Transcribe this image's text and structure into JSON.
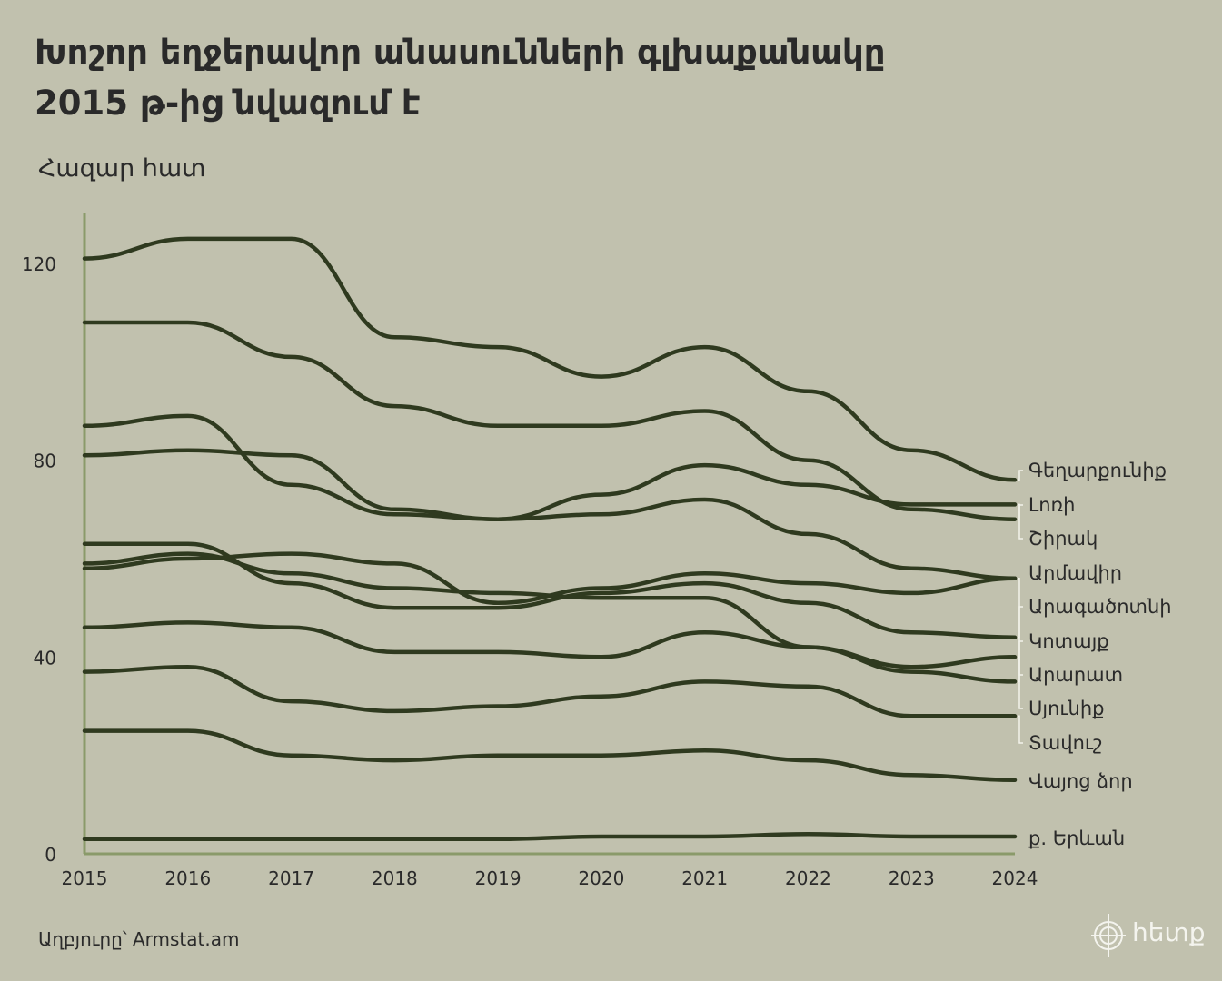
{
  "title_line1": "Խոշոր եղջերավոր անասունների գլխաքանակը",
  "title_line2": "2015 թ-ից նվազում է",
  "unit_label": "Հազար հատ",
  "source_text": "Աղբյուրը՝ Armstat.am",
  "logo_text": "հետք",
  "colors": {
    "background": "#c1c1ae",
    "line": "#2f3a1f",
    "axis": "#8a9a6a",
    "label_connector": "#f2f2ea",
    "text": "#2a2a2a"
  },
  "chart_data": {
    "type": "line",
    "title": "Խոշոր եղջերավոր անասունների գլխաքանակը 2015 թ-ից նվազում է",
    "ylabel": "Հազար հատ",
    "xlabel": "",
    "x": [
      2015,
      2016,
      2017,
      2018,
      2019,
      2020,
      2021,
      2022,
      2023,
      2024
    ],
    "x_tick_labels": [
      "2015",
      "2016",
      "2017",
      "2018",
      "2019",
      "2020",
      "2021",
      "2022",
      "2023",
      "2024"
    ],
    "ylim": [
      0,
      130
    ],
    "y_ticks": [
      0,
      40,
      80,
      120
    ],
    "grid": false,
    "legend": "direct labels at right end",
    "series": [
      {
        "name": "Գեղարքունիք",
        "values": [
          121,
          125,
          125,
          105,
          103,
          97,
          103,
          94,
          82,
          76
        ]
      },
      {
        "name": "Լոռի",
        "values": [
          108,
          108,
          101,
          91,
          87,
          87,
          90,
          80,
          70,
          68
        ]
      },
      {
        "name": "Շիրակ",
        "values": [
          87,
          89,
          75,
          69,
          68,
          73,
          79,
          75,
          71,
          71
        ]
      },
      {
        "name": "Արմավիր",
        "values": [
          81,
          82,
          81,
          70,
          68,
          69,
          72,
          65,
          58,
          56
        ]
      },
      {
        "name": "Արագածոտնի",
        "values": [
          63,
          63,
          55,
          50,
          50,
          53,
          55,
          51,
          45,
          44
        ]
      },
      {
        "name": "Կոտայք",
        "values": [
          59,
          61,
          57,
          54,
          53,
          52,
          52,
          42,
          37,
          35
        ]
      },
      {
        "name": "Արարատ",
        "values": [
          58,
          60,
          61,
          59,
          51,
          54,
          57,
          55,
          53,
          56
        ]
      },
      {
        "name": "Սյունիք",
        "values": [
          46,
          47,
          46,
          41,
          41,
          40,
          45,
          42,
          38,
          40
        ]
      },
      {
        "name": "Տավուշ",
        "values": [
          37,
          38,
          31,
          29,
          30,
          32,
          35,
          34,
          28,
          28
        ]
      },
      {
        "name": "Վայոց ձոր",
        "values": [
          25,
          25,
          20,
          19,
          20,
          20,
          21,
          19,
          16,
          15
        ]
      },
      {
        "name": "ք. Երևան",
        "values": [
          3,
          3,
          3,
          3,
          3,
          3.5,
          3.5,
          4,
          3.5,
          3.5
        ]
      }
    ]
  }
}
